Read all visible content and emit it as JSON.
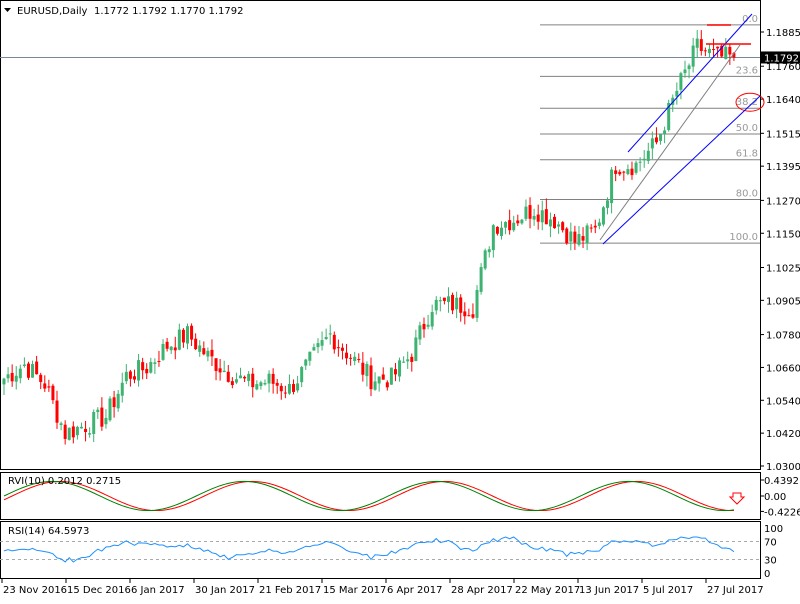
{
  "header": {
    "symbol_timeframe": "EURUSD,Daily",
    "ohlc": "1.1772 1.1792 1.1770 1.1792"
  },
  "chart_data": {
    "type": "candlestick",
    "symbol": "EURUSD",
    "timeframe": "Daily",
    "current_price": "1.1792",
    "price_ticks": [
      "1.1885",
      "1.1760",
      "1.1640",
      "1.1515",
      "1.1395",
      "1.1270",
      "1.1150",
      "1.1025",
      "1.0905",
      "1.0780",
      "1.0660",
      "1.0540",
      "1.0420",
      "1.0300"
    ],
    "ylim": [
      1.03,
      1.1885
    ],
    "time_ticks": [
      "23 Nov 2016",
      "15 Dec 2016",
      "6 Jan 2017",
      "30 Jan 2017",
      "21 Feb 2017",
      "15 Mar 2017",
      "6 Apr 2017",
      "28 Apr 2017",
      "22 May 2017",
      "13 Jun 2017",
      "5 Jul 2017",
      "27 Jul 2017"
    ],
    "approx_weekly_closes": [
      1.062,
      1.067,
      1.06,
      1.042,
      1.045,
      1.048,
      1.063,
      1.066,
      1.074,
      1.078,
      1.07,
      1.064,
      1.06,
      1.061,
      1.058,
      1.068,
      1.078,
      1.07,
      1.062,
      1.062,
      1.071,
      1.089,
      1.089,
      1.088,
      1.118,
      1.12,
      1.124,
      1.12,
      1.112,
      1.116,
      1.14,
      1.14,
      1.148,
      1.167,
      1.183,
      1.1792
    ],
    "colors": {
      "bull": "#3cb371",
      "bear": "#ff0000",
      "channel": "#0000ff",
      "fib": "#808080",
      "rsi": "#1e90ff",
      "rvi_main": "#008000",
      "rvi_signal": "#ff0000"
    },
    "fibonacci": {
      "high": 1.1911,
      "low": 1.1114,
      "levels": [
        "0.0",
        "23.6",
        "38.2",
        "50.0",
        "61.8",
        "80.0",
        "100.0"
      ],
      "highlighted": "38.2"
    },
    "rvi": {
      "label": "RVI(10) 0.2012 0.2715",
      "ticks": [
        "0.4392",
        "0.00",
        "-0.4226"
      ],
      "signal_arrow": "down-arrow"
    },
    "rsi": {
      "label": "RSI(14) 64.5973",
      "ticks": [
        "100",
        "70",
        "30",
        "0"
      ],
      "levels": [
        70,
        30
      ]
    }
  }
}
